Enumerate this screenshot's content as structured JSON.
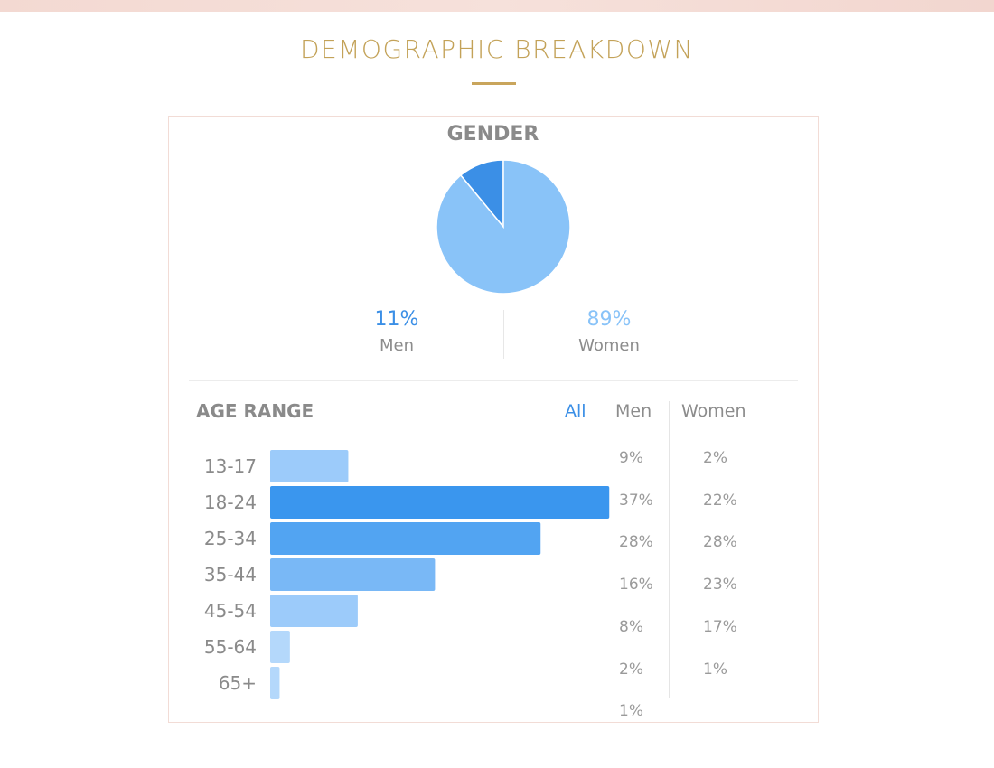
{
  "page": {
    "title": "DEMOGRAPHIC BREAKDOWN"
  },
  "colors": {
    "accent_gold": "#c9a55c",
    "men_blue": "#3b8fe6",
    "women_blue": "#89c3f8",
    "bar_colors": [
      "#9ccbfa",
      "#3a96ee",
      "#52a4f2",
      "#79b8f6",
      "#9ccbfa",
      "#b4d8fb",
      "#b4d8fb"
    ]
  },
  "gender": {
    "title": "GENDER",
    "men": {
      "pct": "11%",
      "label": "Men"
    },
    "women": {
      "pct": "89%",
      "label": "Women"
    }
  },
  "age_range": {
    "title": "AGE RANGE",
    "columns": {
      "all": "All",
      "men": "Men",
      "women": "Women"
    },
    "rows": [
      {
        "label": "13-17",
        "men": "9%",
        "women": "2%"
      },
      {
        "label": "18-24",
        "men": "37%",
        "women": "22%"
      },
      {
        "label": "25-34",
        "men": "28%",
        "women": "28%"
      },
      {
        "label": "35-44",
        "men": "16%",
        "women": "23%"
      },
      {
        "label": "45-54",
        "men": "8%",
        "women": "17%"
      },
      {
        "label": "55-64",
        "men": "2%",
        "women": "1%"
      },
      {
        "label": "65+",
        "men": "1%",
        "women": ""
      }
    ]
  },
  "chart_data": [
    {
      "type": "pie",
      "title": "GENDER",
      "categories": [
        "Men",
        "Women"
      ],
      "values": [
        11,
        89
      ]
    },
    {
      "type": "bar",
      "orientation": "horizontal",
      "title": "AGE RANGE",
      "categories": [
        "13-17",
        "18-24",
        "25-34",
        "35-44",
        "45-54",
        "55-64",
        "65+"
      ],
      "values": [
        9.1,
        39.5,
        31.5,
        19.2,
        10.2,
        2.3,
        1.1
      ],
      "xlim": [
        0,
        40
      ]
    }
  ]
}
